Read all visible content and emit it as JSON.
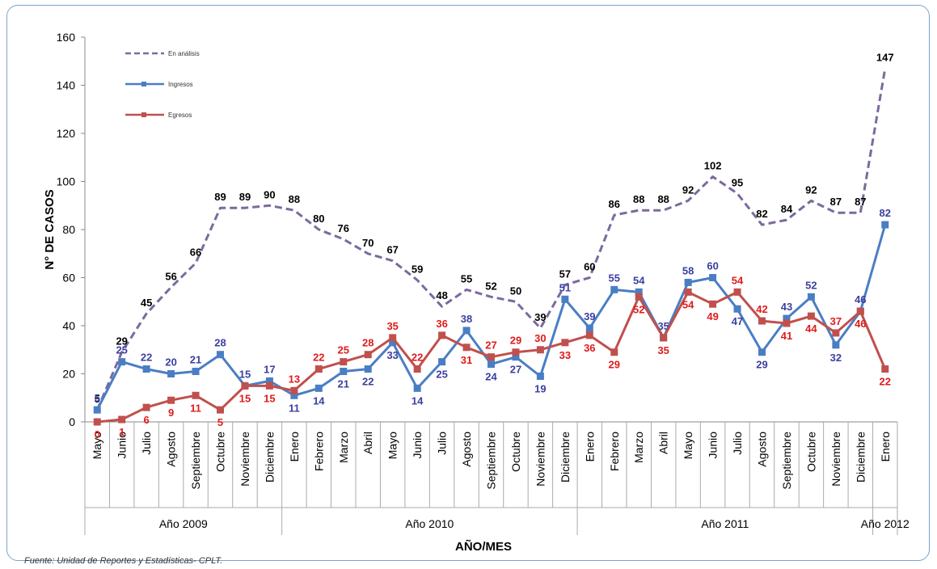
{
  "chart_data": {
    "type": "line",
    "xlabel": "AÑO/MES",
    "ylabel": "N° DE CASOS",
    "ylim": [
      0,
      160
    ],
    "yticks": [
      "0",
      "20",
      "40",
      "60",
      "80",
      "100",
      "120",
      "140",
      "160"
    ],
    "grid": false,
    "legend_position": "top-left",
    "categories": [
      "Mayo",
      "Junio",
      "Julio",
      "Agosto",
      "Septiembre",
      "Octubre",
      "Noviembre",
      "Diciembre",
      "Enero",
      "Febrero",
      "Marzo",
      "Abril",
      "Mayo",
      "Junio",
      "Julio",
      "Agosto",
      "Septiembre",
      "Octubre",
      "Noviembre",
      "Diciembre",
      "Enero",
      "Febrero",
      "Marzo",
      "Abril",
      "Mayo",
      "Junio",
      "Julio",
      "Agosto",
      "Septiembre",
      "Octubre",
      "Noviembre",
      "Diciembre",
      "Enero"
    ],
    "year_groups": [
      {
        "label": "Año 2009",
        "count": 8
      },
      {
        "label": "Año 2010",
        "count": 12
      },
      {
        "label": "Año 2011",
        "count": 12
      },
      {
        "label": "Año 2012",
        "count": 1
      }
    ],
    "series": [
      {
        "name": "En análisis",
        "color": "#7b6a9e",
        "dashed": true,
        "label_color": "#000000",
        "values": [
          5,
          29,
          45,
          56,
          66,
          89,
          89,
          90,
          88,
          80,
          76,
          70,
          67,
          59,
          48,
          55,
          52,
          50,
          39,
          57,
          60,
          86,
          88,
          88,
          92,
          102,
          95,
          82,
          84,
          92,
          87,
          87,
          147
        ]
      },
      {
        "name": "Ingresos",
        "color": "#4a7ec4",
        "dashed": false,
        "label_color": "#3b3fa0",
        "values": [
          5,
          25,
          22,
          20,
          21,
          28,
          15,
          17,
          11,
          14,
          21,
          22,
          33,
          14,
          25,
          38,
          24,
          27,
          19,
          51,
          39,
          55,
          54,
          35,
          58,
          60,
          47,
          29,
          43,
          52,
          32,
          46,
          82
        ]
      },
      {
        "name": "Egresos",
        "color": "#c0504d",
        "dashed": false,
        "label_color": "#e01b1b",
        "values": [
          0,
          1,
          6,
          9,
          11,
          5,
          15,
          15,
          13,
          22,
          25,
          28,
          35,
          22,
          36,
          31,
          27,
          29,
          30,
          33,
          36,
          29,
          52,
          35,
          54,
          49,
          54,
          42,
          41,
          44,
          37,
          46,
          22
        ]
      }
    ]
  },
  "source_note": "Fuente: Unidad de Reportes y Estadísticas- CPLT."
}
